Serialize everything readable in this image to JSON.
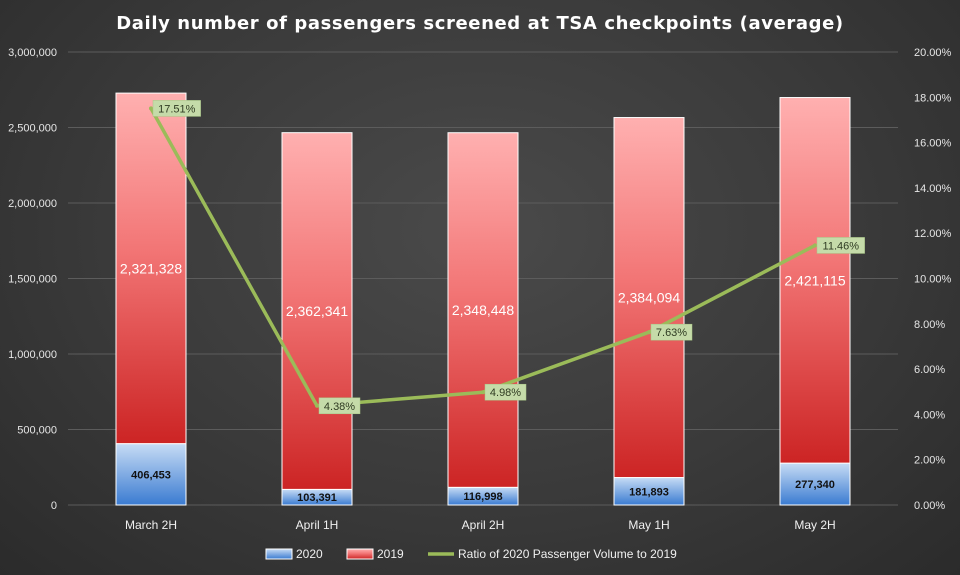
{
  "chart_data": {
    "type": "bar",
    "stacked": true,
    "title": "Daily number of passengers screened at TSA checkpoints (average)",
    "categories": [
      "March 2H",
      "April 1H",
      "April 2H",
      "May 1H",
      "May 2H"
    ],
    "series": [
      {
        "name": "2020",
        "values": [
          406453,
          103391,
          116998,
          181893,
          277340
        ],
        "labels": [
          "406,453",
          "103,391",
          "116,998",
          "181,893",
          "277,340"
        ],
        "color": "#5b9bd5"
      },
      {
        "name": "2019",
        "values": [
          2321328,
          2362341,
          2348448,
          2384094,
          2421115
        ],
        "labels": [
          "2,321,328",
          "2,362,341",
          "2,348,448",
          "2,384,094",
          "2,421,115"
        ],
        "color": "#e0403f"
      }
    ],
    "line_series": {
      "name": "Ratio of 2020 Passenger Volume to 2019",
      "axis": "right",
      "values": [
        17.51,
        4.38,
        4.98,
        7.63,
        11.46
      ],
      "labels": [
        "17.51%",
        "4.38%",
        "4.98%",
        "7.63%",
        "11.46%"
      ],
      "color": "#9bbb59"
    },
    "y_left": {
      "ylim": [
        0,
        3000000
      ],
      "ticks": [
        0,
        500000,
        1000000,
        1500000,
        2000000,
        2500000,
        3000000
      ],
      "tick_labels": [
        "0",
        "500,000",
        "1,000,000",
        "1,500,000",
        "2,000,000",
        "2,500,000",
        "3,000,000"
      ]
    },
    "y_right": {
      "ylim": [
        0,
        20
      ],
      "ticks": [
        0,
        2,
        4,
        6,
        8,
        10,
        12,
        14,
        16,
        18,
        20
      ],
      "tick_labels": [
        "0.00%",
        "2.00%",
        "4.00%",
        "6.00%",
        "8.00%",
        "10.00%",
        "12.00%",
        "14.00%",
        "16.00%",
        "18.00%",
        "20.00%"
      ]
    },
    "legend": [
      "2020",
      "2019",
      "Ratio of 2020 Passenger Volume to 2019"
    ],
    "legend_position": "bottom",
    "grid": true
  }
}
